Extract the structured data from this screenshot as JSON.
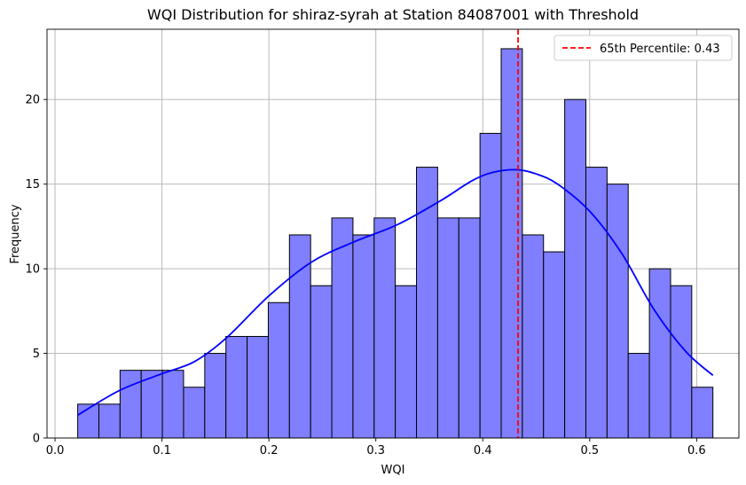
{
  "chart_data": {
    "type": "bar",
    "title": "WQI Distribution for shiraz-syrah at Station 84087001 with Threshold",
    "xlabel": "WQI",
    "ylabel": "Frequency",
    "xlim": [
      -0.0075,
      0.6395
    ],
    "ylim": [
      0,
      24.15
    ],
    "xticks": [
      0.0,
      0.1,
      0.2,
      0.3,
      0.4,
      0.5,
      0.6
    ],
    "xtick_labels": [
      "0.0",
      "0.1",
      "0.2",
      "0.3",
      "0.4",
      "0.5",
      "0.6"
    ],
    "yticks": [
      0,
      5,
      10,
      15,
      20
    ],
    "ytick_labels": [
      "0",
      "5",
      "10",
      "15",
      "20"
    ],
    "grid": true,
    "bin_edges": [
      0.0212,
      0.041,
      0.0608,
      0.0806,
      0.1004,
      0.1202,
      0.14,
      0.1598,
      0.1796,
      0.1994,
      0.2192,
      0.239,
      0.2588,
      0.2786,
      0.2984,
      0.3182,
      0.338,
      0.3578,
      0.3776,
      0.3974,
      0.4172,
      0.437,
      0.4568,
      0.4766,
      0.4964,
      0.5162,
      0.536,
      0.5558,
      0.5756,
      0.5954,
      0.6152
    ],
    "counts": [
      2,
      2,
      4,
      4,
      4,
      3,
      5,
      6,
      6,
      8,
      12,
      9,
      13,
      12,
      13,
      9,
      16,
      13,
      13,
      18,
      23,
      12,
      11,
      20,
      16,
      15,
      5,
      10,
      9,
      3
    ],
    "bar_color": "#7f7fff",
    "bar_edge_color": "#000000",
    "kde": {
      "color": "#0000ff",
      "x": [
        0.0212,
        0.06,
        0.1,
        0.13,
        0.16,
        0.2,
        0.24,
        0.28,
        0.32,
        0.36,
        0.39,
        0.41,
        0.432,
        0.45,
        0.47,
        0.5,
        0.53,
        0.56,
        0.59,
        0.6152
      ],
      "y": [
        1.35,
        2.8,
        3.8,
        4.5,
        5.9,
        8.4,
        10.4,
        11.6,
        12.6,
        14.0,
        15.2,
        15.7,
        15.85,
        15.6,
        15.0,
        13.4,
        10.9,
        7.6,
        5.1,
        3.7
      ]
    },
    "threshold": {
      "value": 0.433,
      "color": "#ff0000",
      "label": "65th Percentile: 0.43"
    },
    "legend": {
      "placement": "top-right",
      "entries": [
        "65th Percentile: 0.43"
      ]
    }
  }
}
